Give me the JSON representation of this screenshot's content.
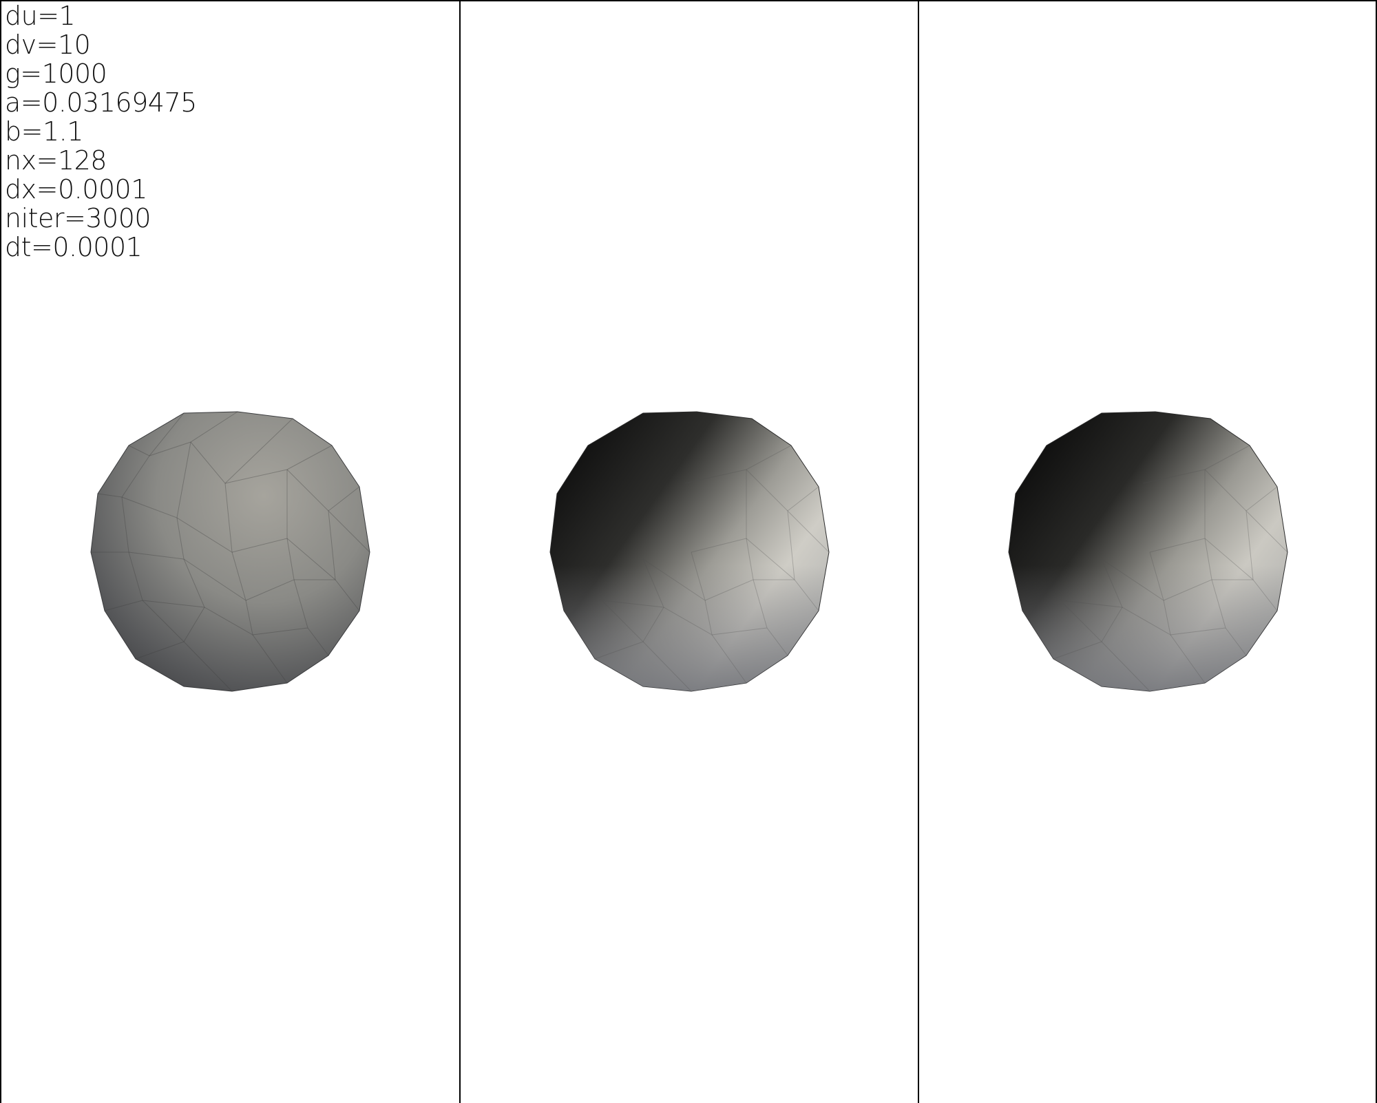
{
  "parameters": [
    "du=1",
    "dv=10",
    "g=1000",
    "a=0.03169475",
    "b=1.1",
    "nx=128",
    "dx=0.0001",
    "niter=3000",
    "dt=0.0001"
  ],
  "viewports": [
    {
      "name": "render-view-1",
      "shading": "flat-gray"
    },
    {
      "name": "render-view-2",
      "shading": "dark-to-light"
    },
    {
      "name": "render-view-3",
      "shading": "dark-to-light"
    }
  ],
  "colors": {
    "background": "#ffffff",
    "border": "#000000",
    "text": "#111111"
  }
}
